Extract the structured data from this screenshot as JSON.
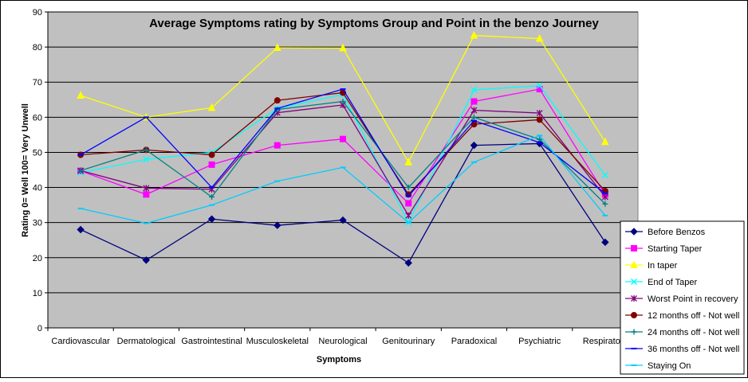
{
  "chart_data": {
    "type": "line",
    "title": "Average Symptoms rating by Symptoms Group and Point in the benzo Journey",
    "xlabel": "Symptoms",
    "ylabel": "Rating 0= Well 100= Very Unwell",
    "ylim": [
      0,
      90
    ],
    "yticks": [
      "0",
      "10",
      "20",
      "30",
      "40",
      "50",
      "60",
      "70",
      "80",
      "90"
    ],
    "grid": true,
    "legend_position": "right",
    "plot_background": "#c0c0c0",
    "categories": [
      "Cardiovascular",
      "Dermatological",
      "Gastrointestinal",
      "Musculoskeletal",
      "Neurological",
      "Genitourinary",
      "Paradoxical",
      "Psychiatric",
      "Respiratory"
    ],
    "series": [
      {
        "name": "Before Benzos",
        "color": "#000080",
        "marker": "diamond",
        "values": [
          28,
          19.3,
          31,
          29.2,
          30.7,
          18.5,
          52,
          52.5,
          24.4
        ]
      },
      {
        "name": "Starting Taper",
        "color": "#ff00ff",
        "marker": "square",
        "values": [
          44.7,
          38,
          46.5,
          52,
          53.8,
          35.5,
          64.5,
          68,
          38
        ]
      },
      {
        "name": "In taper",
        "color": "#ffff00",
        "marker": "triangle",
        "values": [
          66.2,
          60,
          62.7,
          79.8,
          79.7,
          47.2,
          83.3,
          82.4,
          53
        ]
      },
      {
        "name": "End of Taper",
        "color": "#00ffff",
        "marker": "x",
        "values": [
          44.2,
          48,
          50,
          62.5,
          66.5,
          30,
          67.8,
          69,
          43.5
        ]
      },
      {
        "name": "Worst Point in recovery",
        "color": "#800080",
        "marker": "star",
        "values": [
          44.8,
          39.8,
          39.5,
          61.3,
          63.5,
          32,
          62,
          61.2,
          37.3
        ]
      },
      {
        "name": "12 months off - Not well",
        "color": "#800000",
        "marker": "circle",
        "values": [
          49.3,
          50.7,
          49.3,
          64.8,
          67,
          38,
          58,
          59.3,
          39
        ]
      },
      {
        "name": "24 months off - Not well",
        "color": "#008080",
        "marker": "plus",
        "values": [
          44.8,
          50.7,
          37.3,
          62.2,
          64.5,
          40,
          60,
          53.7,
          35.3
        ]
      },
      {
        "name": "36 months off - Not well",
        "color": "#0000ff",
        "marker": "dash",
        "values": [
          49.3,
          60,
          40,
          62.5,
          68,
          37.5,
          59,
          52.8,
          38.3
        ]
      },
      {
        "name": "Staying On",
        "color": "#00ccff",
        "marker": "dash",
        "values": [
          34,
          29.8,
          35,
          41.8,
          45.7,
          30,
          47.2,
          54.8,
          32
        ]
      }
    ]
  }
}
